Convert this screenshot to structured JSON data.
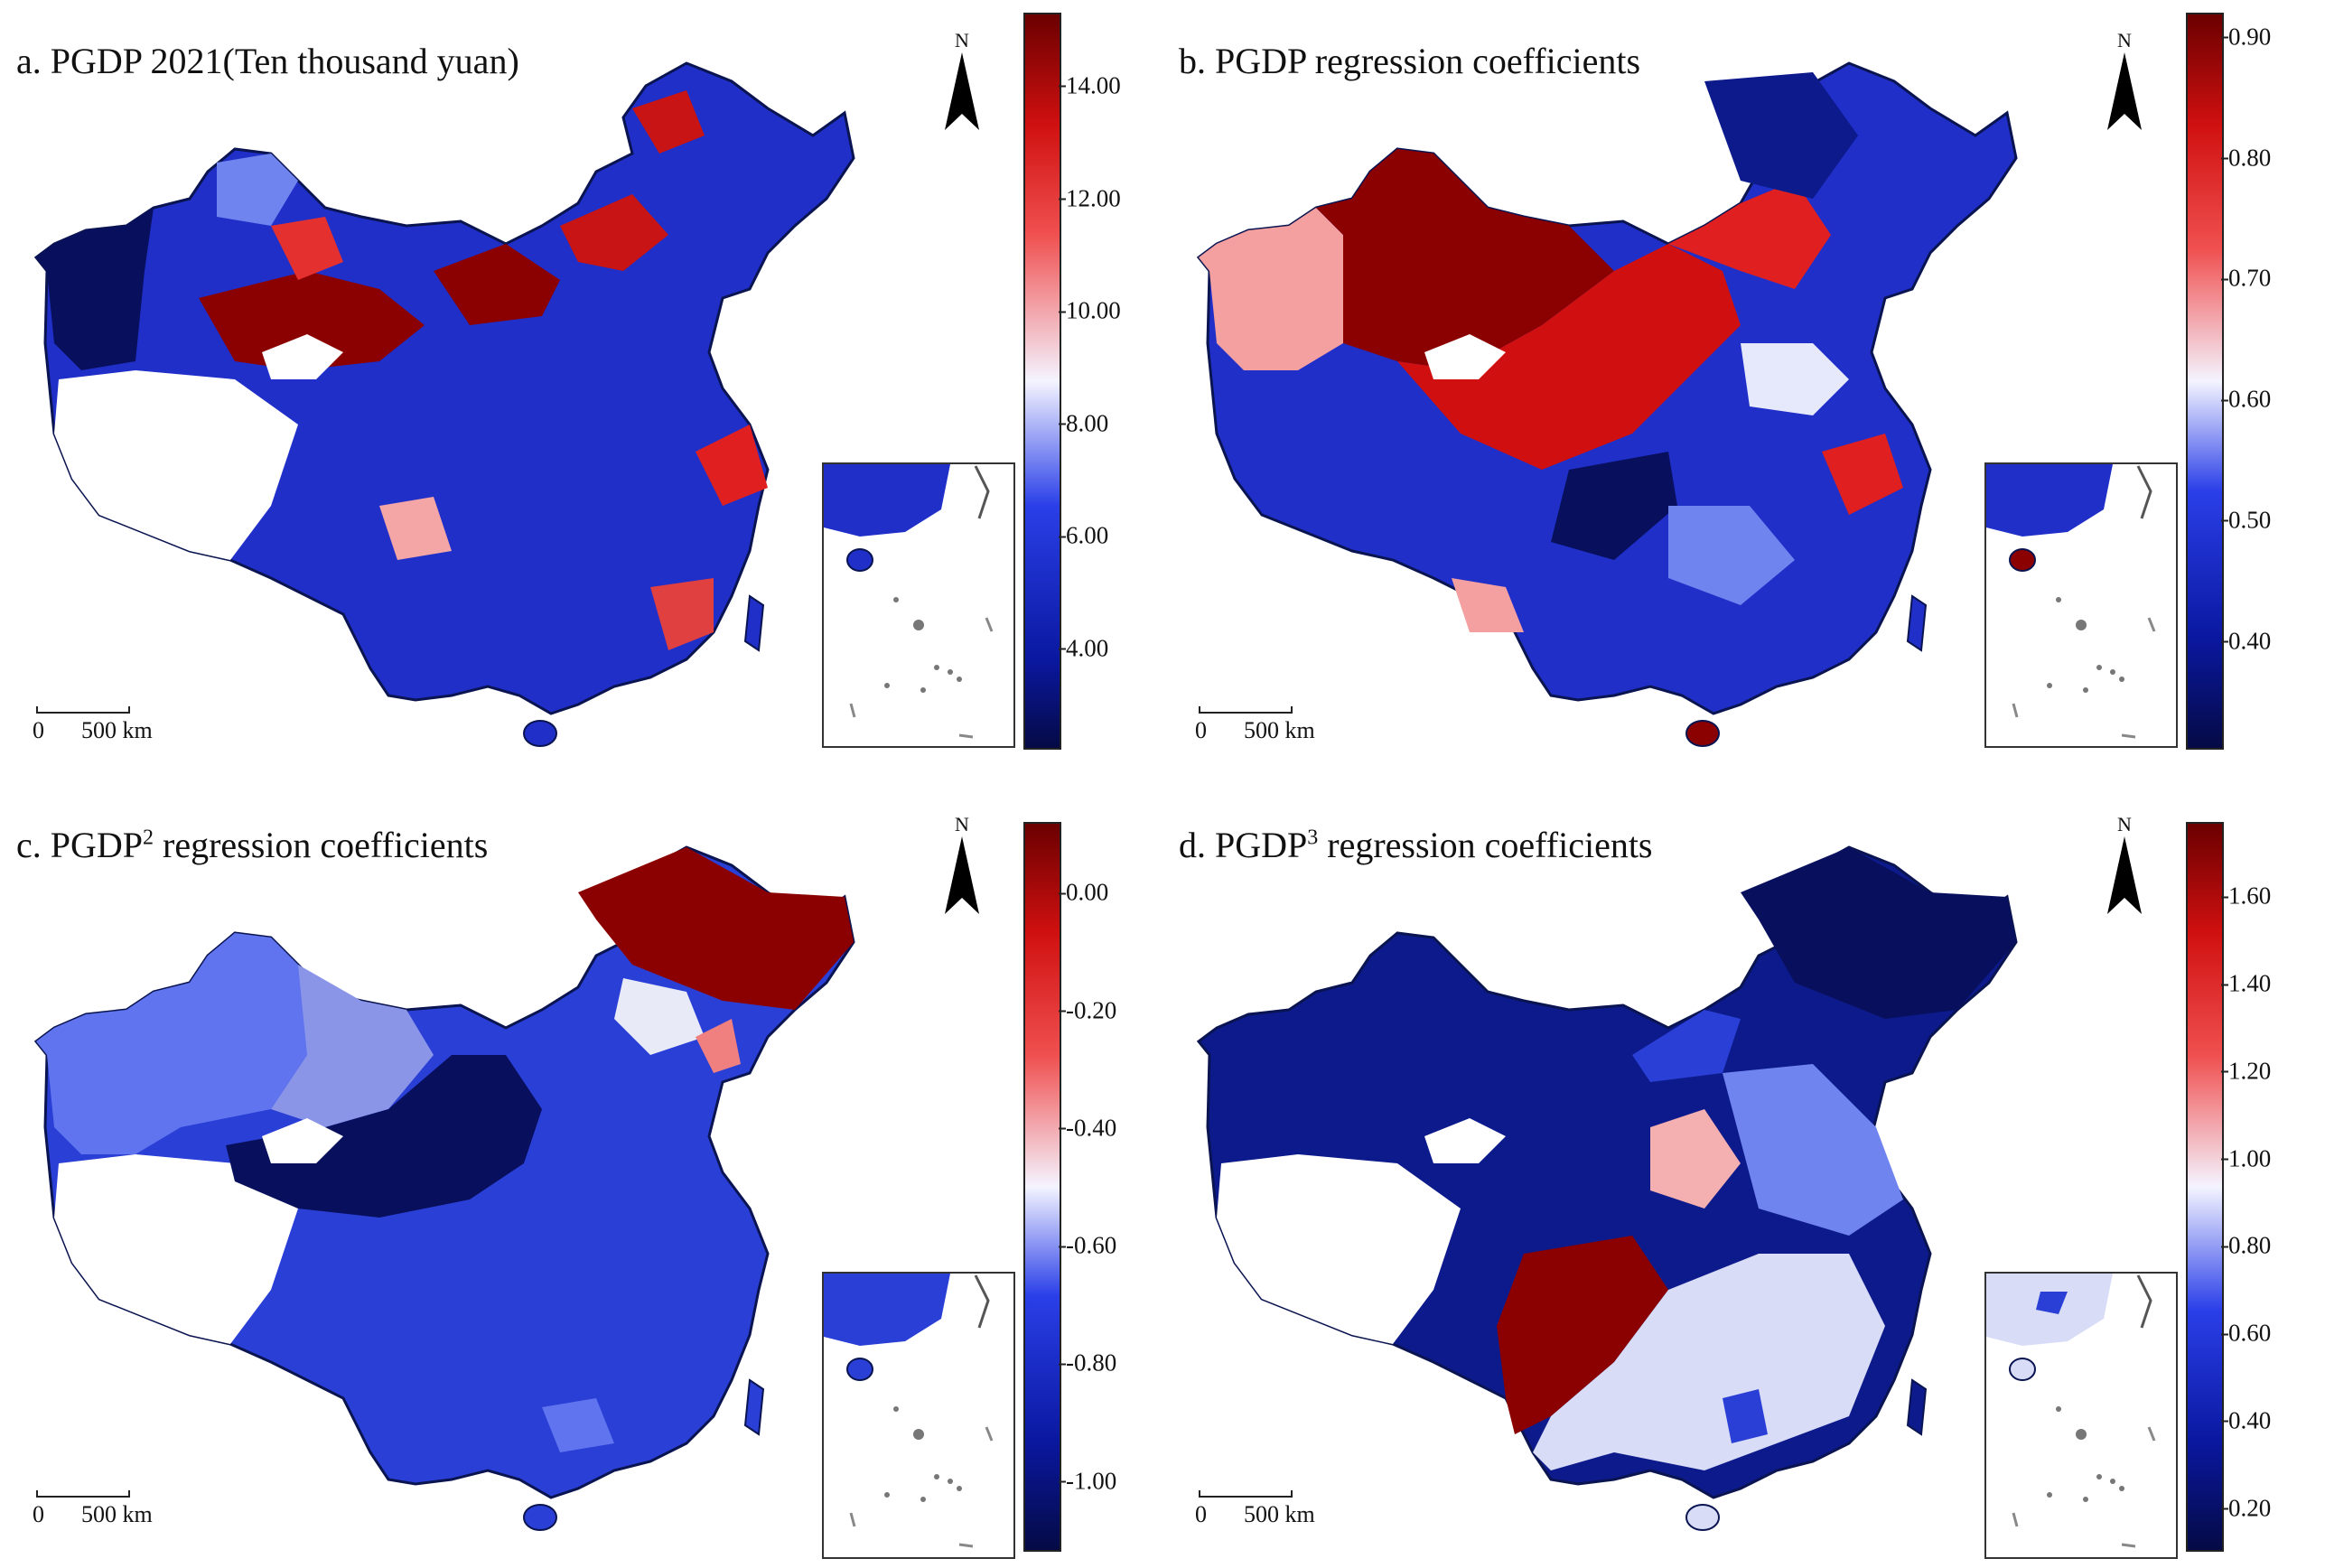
{
  "figure": {
    "panels": [
      {
        "id": "a",
        "title": "a. PGDP 2021(Ten thousand yuan)",
        "title_main": "a. PGDP 2021(Ten thousand yuan)",
        "title_sup": "",
        "title_tail": "",
        "colorbar": {
          "min": 2.2,
          "max": 15.3,
          "ticks": [
            "4.00",
            "6.00",
            "8.00",
            "10.00",
            "12.00",
            "14.00"
          ],
          "tick_values": [
            4,
            6,
            8,
            10,
            12,
            14
          ]
        },
        "dominant_color": "#1f2fc8",
        "palette": [
          "#08105e",
          "#1f2fc8",
          "#3a56f0",
          "#8ea0f5",
          "#ffffff",
          "#f4a6a6",
          "#e53030",
          "#8b0000"
        ]
      },
      {
        "id": "b",
        "title": "b. PGDP regression coefficients",
        "title_main": "b. PGDP regression coefficients",
        "title_sup": "",
        "title_tail": "",
        "colorbar": {
          "min": 0.31,
          "max": 0.92,
          "ticks": [
            "0.40",
            "0.50",
            "0.60",
            "0.70",
            "0.80",
            "0.90"
          ],
          "tick_values": [
            0.4,
            0.5,
            0.6,
            0.7,
            0.8,
            0.9
          ]
        },
        "dominant_color": "#c81414",
        "palette": [
          "#08105e",
          "#1f2fc8",
          "#6f84ee",
          "#e6e8fb",
          "#f4a0a0",
          "#e02020",
          "#8b0000"
        ]
      },
      {
        "id": "c",
        "title": "c. PGDP² regression coefficients",
        "title_main": "c. PGDP",
        "title_sup": "2",
        "title_tail": " regression coefficients",
        "colorbar": {
          "min": -1.12,
          "max": 0.12,
          "ticks": [
            "-1.00",
            "-0.80",
            "-0.60",
            "-0.40",
            "-0.20",
            "0.00"
          ],
          "tick_values": [
            -1.0,
            -0.8,
            -0.6,
            -0.4,
            -0.2,
            0.0
          ]
        },
        "dominant_color": "#2a3fd6",
        "palette": [
          "#08105e",
          "#2a3fd6",
          "#5f74ee",
          "#8a95e8",
          "#e8eaf8",
          "#f08080",
          "#8b0000"
        ]
      },
      {
        "id": "d",
        "title": "d. PGDP³ regression coefficients",
        "title_main": "d. PGDP",
        "title_sup": "3",
        "title_tail": " regression coefficients",
        "colorbar": {
          "min": 0.1,
          "max": 1.77,
          "ticks": [
            "0.20",
            "0.40",
            "0.60",
            "0.80",
            "1.00",
            "1.20",
            "1.40",
            "1.60"
          ],
          "tick_values": [
            0.2,
            0.4,
            0.6,
            0.8,
            1.0,
            1.2,
            1.4,
            1.6
          ]
        },
        "dominant_color": "#0c1a8c",
        "palette": [
          "#08105e",
          "#0c1a8c",
          "#2a3fd6",
          "#6f84ee",
          "#d8dcf7",
          "#f4b0b0",
          "#8b0000"
        ]
      }
    ],
    "north_label": "N",
    "scale_zero": "0",
    "scale_distance": "500 km"
  }
}
